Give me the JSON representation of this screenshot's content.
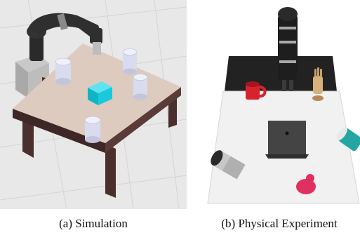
{
  "figure": {
    "panel_a": {
      "caption": "(a) Simulation"
    },
    "panel_b": {
      "caption": "(b) Physical Experiment"
    }
  },
  "colors": {
    "sim_floor": "#e6e6e6",
    "sim_tabletop": "#ddcbbf",
    "sim_table_legs": "#4a2f2d",
    "sim_cube": "#19c9dc",
    "sim_cylinders": "#d9dbef",
    "phys_background": "#ffffff",
    "phys_black_mat": "#222222",
    "phys_board": "#f1f1f1",
    "phys_mug": "#d8232e",
    "phys_pink_object": "#e0305f",
    "phys_teal_can": "#24a7a3"
  }
}
